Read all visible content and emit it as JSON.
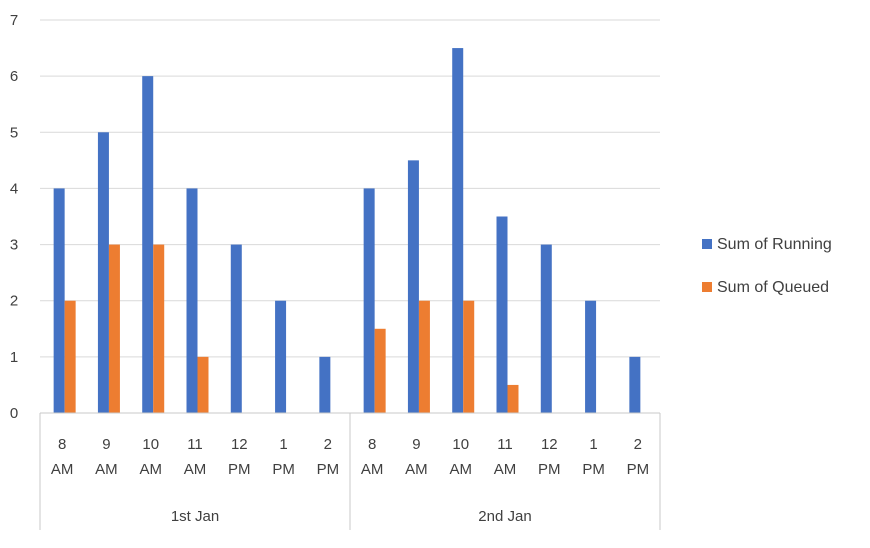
{
  "chart_data": {
    "type": "bar",
    "groups": [
      {
        "label": "1st Jan",
        "categories": [
          [
            "8",
            "AM"
          ],
          [
            "9",
            "AM"
          ],
          [
            "10",
            "AM"
          ],
          [
            "11",
            "AM"
          ],
          [
            "12",
            "PM"
          ],
          [
            "1",
            "PM"
          ],
          [
            "2",
            "PM"
          ]
        ]
      },
      {
        "label": "2nd Jan",
        "categories": [
          [
            "8",
            "AM"
          ],
          [
            "9",
            "AM"
          ],
          [
            "10",
            "AM"
          ],
          [
            "11",
            "AM"
          ],
          [
            "12",
            "PM"
          ],
          [
            "1",
            "PM"
          ],
          [
            "2",
            "PM"
          ]
        ]
      }
    ],
    "series": [
      {
        "name": "Sum of Running",
        "color": "#4472c4",
        "values": [
          4,
          5,
          6,
          4,
          3,
          2,
          1,
          4,
          4.5,
          6.5,
          3.5,
          3,
          2,
          1
        ]
      },
      {
        "name": "Sum of Queued",
        "color": "#ed7d31",
        "values": [
          2,
          3,
          3,
          1,
          0,
          0,
          0,
          1.5,
          2,
          2,
          0.5,
          0,
          0,
          0
        ]
      }
    ],
    "ylim": [
      0,
      7
    ],
    "yticks": [
      "0",
      "1",
      "2",
      "3",
      "4",
      "5",
      "6",
      "7"
    ],
    "grid": true,
    "legend": "right",
    "title": "",
    "xlabel": "",
    "ylabel": ""
  }
}
